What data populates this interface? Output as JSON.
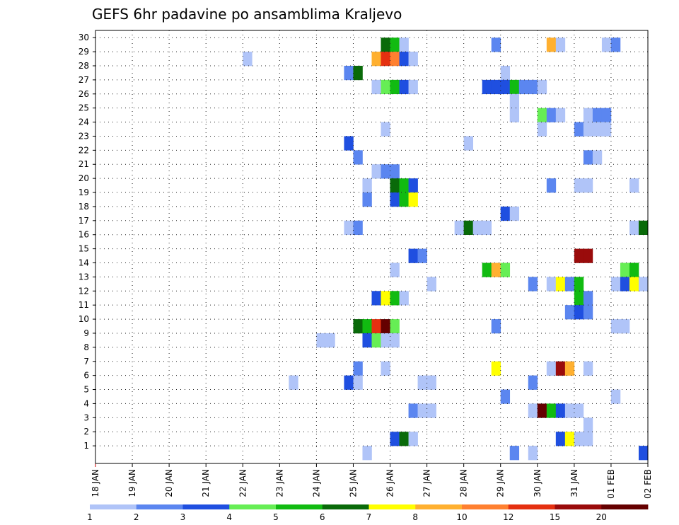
{
  "chart_data": {
    "type": "heatmap",
    "title": "GEFS 6hr padavine po ansamblima Kraljevo",
    "xlabel": "",
    "ylabel": "",
    "x_start": "2024-01-18T00:00",
    "x_end": "2024-02-02T00:00",
    "x_step_hours": 6,
    "x_tick_labels": [
      "18 JAN",
      "19 JAN",
      "20 JAN",
      "21 JAN",
      "22 JAN",
      "23 JAN",
      "24 JAN",
      "25 JAN",
      "26 JAN",
      "27 JAN",
      "28 JAN",
      "29 JAN",
      "30 JAN",
      "31 JAN",
      "01 FEB",
      "02 FEB"
    ],
    "y_tick_labels": [
      "1",
      "2",
      "3",
      "4",
      "5",
      "6",
      "7",
      "8",
      "9",
      "10",
      "11",
      "12",
      "13",
      "14",
      "15",
      "16",
      "17",
      "18",
      "19",
      "20",
      "21",
      "22",
      "23",
      "24",
      "25",
      "26",
      "27",
      "28",
      "29",
      "30"
    ],
    "ylim": [
      0,
      30
    ],
    "grid": true,
    "colorbar": {
      "labels": [
        "1",
        "2",
        "3",
        "4",
        "5",
        "6",
        "7",
        "8",
        "10",
        "12",
        "15",
        "20"
      ],
      "colors": [
        "#B0C4F8",
        "#5B86F0",
        "#1F4FE0",
        "#66EE55",
        "#11BB11",
        "#096A09",
        "#FFFF00",
        "#FFB030",
        "#FF8030",
        "#E53010",
        "#9A0B0B",
        "#650000"
      ]
    },
    "cells": [
      [
        30,
        "2024-01-25T18:00",
        6
      ],
      [
        30,
        "2024-01-26T00:00",
        5
      ],
      [
        30,
        "2024-01-26T06:00",
        1
      ],
      [
        30,
        "2024-01-28T18:00",
        2
      ],
      [
        30,
        "2024-01-30T06:00",
        8
      ],
      [
        30,
        "2024-01-30T12:00",
        1
      ],
      [
        30,
        "2024-01-31T18:00",
        1
      ],
      [
        30,
        "2024-02-01T00:00",
        2
      ],
      [
        29,
        "2024-01-22T00:00",
        1
      ],
      [
        29,
        "2024-01-25T12:00",
        8
      ],
      [
        29,
        "2024-01-25T18:00",
        12
      ],
      [
        29,
        "2024-01-26T00:00",
        10
      ],
      [
        29,
        "2024-01-26T06:00",
        3
      ],
      [
        29,
        "2024-01-26T12:00",
        1
      ],
      [
        28,
        "2024-01-24T18:00",
        2
      ],
      [
        28,
        "2024-01-25T00:00",
        6
      ],
      [
        28,
        "2024-01-29T00:00",
        1
      ],
      [
        27,
        "2024-01-25T12:00",
        1
      ],
      [
        27,
        "2024-01-25T18:00",
        4
      ],
      [
        27,
        "2024-01-26T00:00",
        5
      ],
      [
        27,
        "2024-01-26T06:00",
        3
      ],
      [
        27,
        "2024-01-26T12:00",
        1
      ],
      [
        27,
        "2024-01-28T12:00",
        3
      ],
      [
        27,
        "2024-01-28T18:00",
        3
      ],
      [
        27,
        "2024-01-29T00:00",
        3
      ],
      [
        27,
        "2024-01-29T06:00",
        5
      ],
      [
        27,
        "2024-01-29T12:00",
        2
      ],
      [
        27,
        "2024-01-29T18:00",
        2
      ],
      [
        27,
        "2024-01-30T00:00",
        1
      ],
      [
        26,
        "2024-01-29T06:00",
        1
      ],
      [
        25,
        "2024-01-29T06:00",
        1
      ],
      [
        25,
        "2024-01-30T00:00",
        4
      ],
      [
        25,
        "2024-01-30T06:00",
        2
      ],
      [
        25,
        "2024-01-30T12:00",
        1
      ],
      [
        25,
        "2024-01-31T06:00",
        1
      ],
      [
        25,
        "2024-01-31T12:00",
        2
      ],
      [
        25,
        "2024-01-31T18:00",
        2
      ],
      [
        24,
        "2024-01-25T18:00",
        1
      ],
      [
        24,
        "2024-01-30T00:00",
        1
      ],
      [
        24,
        "2024-01-31T00:00",
        2
      ],
      [
        24,
        "2024-01-31T06:00",
        1
      ],
      [
        24,
        "2024-01-31T12:00",
        1
      ],
      [
        24,
        "2024-01-31T18:00",
        1
      ],
      [
        23,
        "2024-01-24T18:00",
        3
      ],
      [
        23,
        "2024-01-28T00:00",
        1
      ],
      [
        22,
        "2024-01-25T00:00",
        2
      ],
      [
        22,
        "2024-01-31T06:00",
        2
      ],
      [
        22,
        "2024-01-31T12:00",
        1
      ],
      [
        21,
        "2024-01-25T12:00",
        1
      ],
      [
        21,
        "2024-01-25T18:00",
        2
      ],
      [
        21,
        "2024-01-26T00:00",
        2
      ],
      [
        20,
        "2024-01-25T06:00",
        1
      ],
      [
        20,
        "2024-01-26T00:00",
        6
      ],
      [
        20,
        "2024-01-26T06:00",
        5
      ],
      [
        20,
        "2024-01-26T12:00",
        3
      ],
      [
        20,
        "2024-01-30T06:00",
        2
      ],
      [
        20,
        "2024-01-31T00:00",
        1
      ],
      [
        20,
        "2024-01-31T06:00",
        1
      ],
      [
        20,
        "2024-02-01T12:00",
        1
      ],
      [
        19,
        "2024-01-25T06:00",
        2
      ],
      [
        19,
        "2024-01-26T00:00",
        3
      ],
      [
        19,
        "2024-01-26T06:00",
        5
      ],
      [
        19,
        "2024-01-26T12:00",
        7
      ],
      [
        18,
        "2024-01-29T00:00",
        3
      ],
      [
        18,
        "2024-01-29T06:00",
        1
      ],
      [
        17,
        "2024-01-24T18:00",
        1
      ],
      [
        17,
        "2024-01-25T00:00",
        2
      ],
      [
        17,
        "2024-01-27T18:00",
        1
      ],
      [
        17,
        "2024-01-28T00:00",
        6
      ],
      [
        17,
        "2024-01-28T06:00",
        1
      ],
      [
        17,
        "2024-01-28T12:00",
        1
      ],
      [
        17,
        "2024-02-01T12:00",
        1
      ],
      [
        17,
        "2024-02-01T18:00",
        6
      ],
      [
        15,
        "2024-01-26T12:00",
        3
      ],
      [
        15,
        "2024-01-26T18:00",
        2
      ],
      [
        15,
        "2024-01-31T00:00",
        15
      ],
      [
        15,
        "2024-01-31T06:00",
        15
      ],
      [
        14,
        "2024-01-26T00:00",
        1
      ],
      [
        14,
        "2024-01-28T12:00",
        5
      ],
      [
        14,
        "2024-01-28T18:00",
        8
      ],
      [
        14,
        "2024-01-29T00:00",
        4
      ],
      [
        14,
        "2024-02-01T06:00",
        4
      ],
      [
        14,
        "2024-02-01T12:00",
        5
      ],
      [
        13,
        "2024-01-27T00:00",
        1
      ],
      [
        13,
        "2024-01-29T18:00",
        2
      ],
      [
        13,
        "2024-01-30T06:00",
        1
      ],
      [
        13,
        "2024-01-30T12:00",
        7
      ],
      [
        13,
        "2024-01-30T18:00",
        2
      ],
      [
        13,
        "2024-01-31T00:00",
        5
      ],
      [
        13,
        "2024-02-01T00:00",
        1
      ],
      [
        13,
        "2024-02-01T06:00",
        3
      ],
      [
        13,
        "2024-02-01T12:00",
        7
      ],
      [
        13,
        "2024-02-01T18:00",
        1
      ],
      [
        12,
        "2024-01-25T12:00",
        3
      ],
      [
        12,
        "2024-01-25T18:00",
        7
      ],
      [
        12,
        "2024-01-26T00:00",
        5
      ],
      [
        12,
        "2024-01-26T06:00",
        1
      ],
      [
        12,
        "2024-01-31T00:00",
        5
      ],
      [
        12,
        "2024-01-31T06:00",
        2
      ],
      [
        11,
        "2024-01-30T18:00",
        2
      ],
      [
        11,
        "2024-01-31T00:00",
        3
      ],
      [
        11,
        "2024-01-31T06:00",
        2
      ],
      [
        10,
        "2024-01-25T00:00",
        6
      ],
      [
        10,
        "2024-01-25T06:00",
        5
      ],
      [
        10,
        "2024-01-25T12:00",
        12
      ],
      [
        10,
        "2024-01-25T18:00",
        20
      ],
      [
        10,
        "2024-01-26T00:00",
        4
      ],
      [
        10,
        "2024-01-28T18:00",
        2
      ],
      [
        10,
        "2024-02-01T00:00",
        1
      ],
      [
        10,
        "2024-02-01T06:00",
        1
      ],
      [
        9,
        "2024-01-24T00:00",
        1
      ],
      [
        9,
        "2024-01-24T06:00",
        1
      ],
      [
        9,
        "2024-01-25T06:00",
        3
      ],
      [
        9,
        "2024-01-25T12:00",
        4
      ],
      [
        9,
        "2024-01-25T18:00",
        1
      ],
      [
        9,
        "2024-01-26T00:00",
        1
      ],
      [
        7,
        "2024-01-25T00:00",
        2
      ],
      [
        7,
        "2024-01-25T18:00",
        1
      ],
      [
        7,
        "2024-01-28T18:00",
        7
      ],
      [
        7,
        "2024-01-30T06:00",
        1
      ],
      [
        7,
        "2024-01-30T12:00",
        15
      ],
      [
        7,
        "2024-01-30T18:00",
        8
      ],
      [
        7,
        "2024-01-31T06:00",
        1
      ],
      [
        6,
        "2024-01-23T06:00",
        1
      ],
      [
        6,
        "2024-01-24T18:00",
        3
      ],
      [
        6,
        "2024-01-25T00:00",
        1
      ],
      [
        6,
        "2024-01-26T18:00",
        1
      ],
      [
        6,
        "2024-01-27T00:00",
        1
      ],
      [
        6,
        "2024-01-29T18:00",
        2
      ],
      [
        5,
        "2024-01-29T00:00",
        2
      ],
      [
        5,
        "2024-02-01T00:00",
        1
      ],
      [
        4,
        "2024-01-26T12:00",
        2
      ],
      [
        4,
        "2024-01-26T18:00",
        1
      ],
      [
        4,
        "2024-01-27T00:00",
        1
      ],
      [
        4,
        "2024-01-29T18:00",
        1
      ],
      [
        4,
        "2024-01-30T00:00",
        20
      ],
      [
        4,
        "2024-01-30T06:00",
        5
      ],
      [
        4,
        "2024-01-30T12:00",
        3
      ],
      [
        4,
        "2024-01-30T18:00",
        1
      ],
      [
        4,
        "2024-01-31T00:00",
        1
      ],
      [
        3,
        "2024-01-31T06:00",
        1
      ],
      [
        2,
        "2024-01-26T00:00",
        3
      ],
      [
        2,
        "2024-01-26T06:00",
        6
      ],
      [
        2,
        "2024-01-26T12:00",
        1
      ],
      [
        2,
        "2024-01-30T12:00",
        3
      ],
      [
        2,
        "2024-01-30T18:00",
        7
      ],
      [
        2,
        "2024-01-31T00:00",
        1
      ],
      [
        2,
        "2024-01-31T06:00",
        1
      ],
      [
        1,
        "2024-01-25T06:00",
        1
      ],
      [
        1,
        "2024-01-29T06:00",
        2
      ],
      [
        1,
        "2024-01-29T18:00",
        1
      ],
      [
        1,
        "2024-02-01T18:00",
        3
      ]
    ]
  }
}
